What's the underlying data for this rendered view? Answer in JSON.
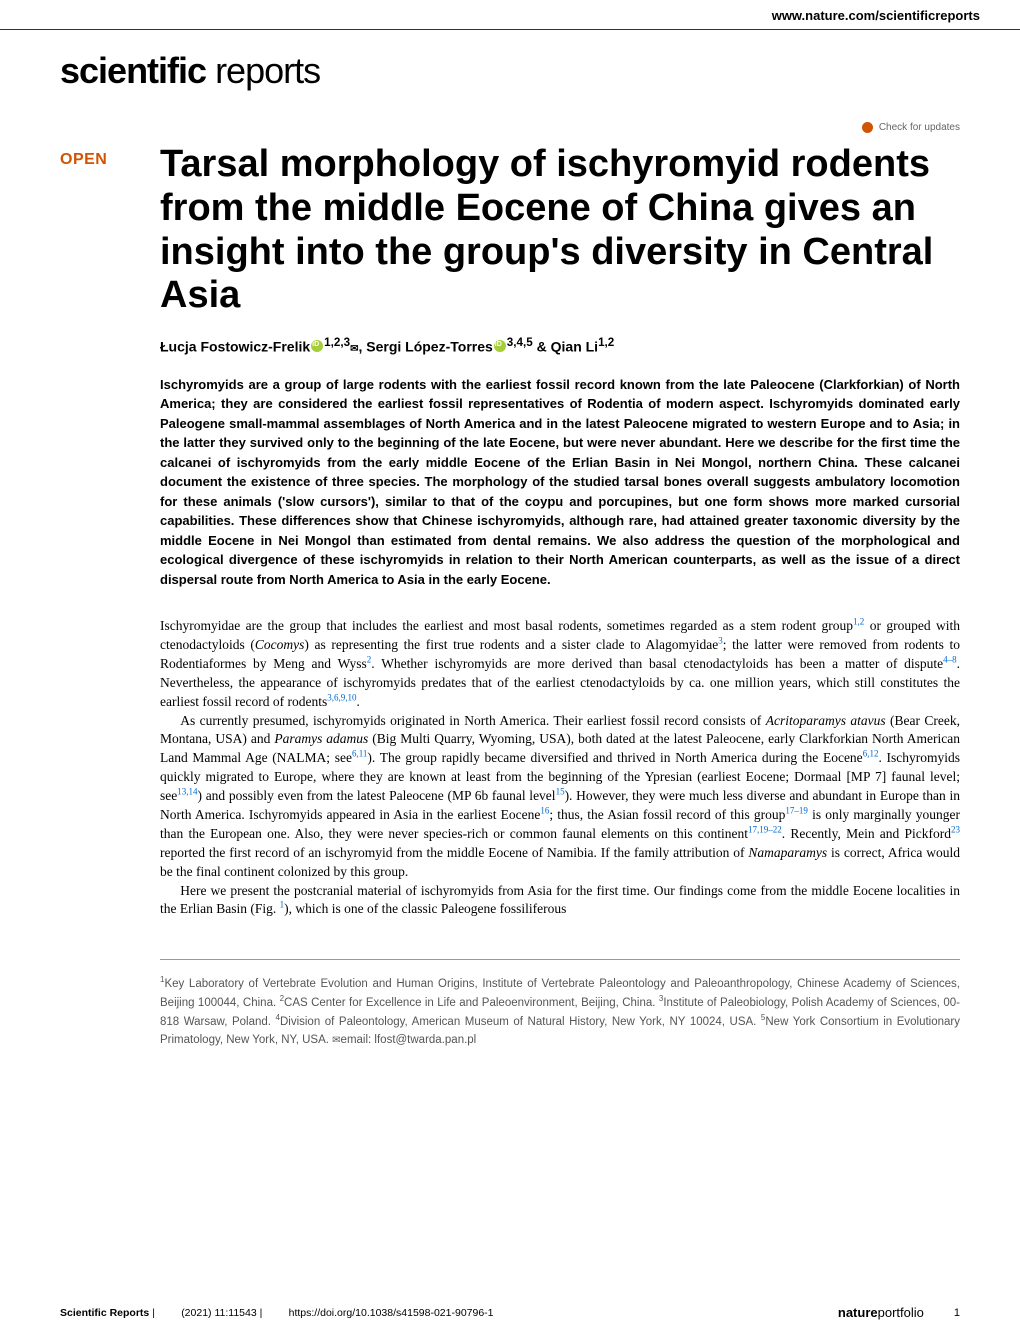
{
  "header": {
    "url": "www.nature.com/scientificreports"
  },
  "logo": {
    "part1": "scientific",
    "part2": " reports"
  },
  "check_updates": "Check for updates",
  "open_badge": "OPEN",
  "title": "Tarsal morphology of ischyromyid rodents from the middle Eocene of China gives an insight into the group's diversity in Central Asia",
  "authors": {
    "a1_name": "Łucja Fostowicz-Frelik",
    "a1_aff": "1,2,3",
    "a2_name": ", Sergi López-Torres",
    "a2_aff": "3,4,5",
    "a3_name": " & Qian Li",
    "a3_aff": "1,2"
  },
  "abstract": "Ischyromyids are a group of large rodents with the earliest fossil record known from the late Paleocene (Clarkforkian) of North America; they are considered the earliest fossil representatives of Rodentia of modern aspect. Ischyromyids dominated early Paleogene small-mammal assemblages of North America and in the latest Paleocene migrated to western Europe and to Asia; in the latter they survived only to the beginning of the late Eocene, but were never abundant. Here we describe for the first time the calcanei of ischyromyids from the early middle Eocene of the Erlian Basin in Nei Mongol, northern China. These calcanei document the existence of three species. The morphology of the studied tarsal bones overall suggests ambulatory locomotion for these animals ('slow cursors'), similar to that of the coypu and porcupines, but one form shows more marked cursorial capabilities. These differences show that Chinese ischyromyids, although rare, had attained greater taxonomic diversity by the middle Eocene in Nei Mongol than estimated from dental remains. We also address the question of the morphological and ecological divergence of these ischyromyids in relation to their North American counterparts, as well as the issue of a direct dispersal route from North America to Asia in the early Eocene.",
  "body": {
    "p1_a": "Ischyromyidae are the group that includes the earliest and most basal rodents, sometimes regarded as a stem rodent group",
    "p1_r1": "1,2",
    "p1_b": " or grouped with ctenodactyloids (",
    "p1_i1": "Cocomys",
    "p1_c": ") as representing the first true rodents and a sister clade to Alagomyidae",
    "p1_r2": "3",
    "p1_d": "; the latter were removed from rodents to Rodentiaformes by Meng and Wyss",
    "p1_r3": "2",
    "p1_e": ". Whether ischyromyids are more derived than basal ctenodactyloids has been a matter of dispute",
    "p1_r4": "4–8",
    "p1_f": ". Nevertheless, the appearance of ischyromyids predates that of the earliest ctenodactyloids by ca. one million years, which still constitutes the earliest fossil record of rodents",
    "p1_r5": "3,6,9,10",
    "p1_g": ".",
    "p2_a": "As currently presumed, ischyromyids originated in North America. Their earliest fossil record consists of ",
    "p2_i1": "Acritoparamys atavus",
    "p2_b": " (Bear Creek, Montana, USA) and ",
    "p2_i2": "Paramys adamus",
    "p2_c": " (Big Multi Quarry, Wyoming, USA), both dated at the latest Paleocene, early Clarkforkian North American Land Mammal Age (NALMA; see",
    "p2_r1": "6,11",
    "p2_d": "). The group rapidly became diversified and thrived in North America during the Eocene",
    "p2_r2": "6,12",
    "p2_e": ". Ischyromyids quickly migrated to Europe, where they are known at least from the beginning of the Ypresian (earliest Eocene; Dormaal [MP 7] faunal level; see",
    "p2_r3": "13,14",
    "p2_f": ") and possibly even from the latest Paleocene (MP 6b faunal level",
    "p2_r4": "15",
    "p2_g": "). However, they were much less diverse and abundant in Europe than in North America. Ischyromyids appeared in Asia in the earliest Eocene",
    "p2_r5": "16",
    "p2_h": "; thus, the Asian fossil record of this group",
    "p2_r6": "17–19",
    "p2_i": " is only marginally younger than the European one. Also, they were never species-rich or common faunal elements on this continent",
    "p2_r7": "17,19–22",
    "p2_j": ". Recently, Mein and Pickford",
    "p2_r8": "23",
    "p2_k": " reported the first record of an ischyromyid from the middle Eocene of Namibia. If the family attribution of ",
    "p2_i3": "Namaparamys",
    "p2_l": " is correct, Africa would be the final continent colonized by this group.",
    "p3_a": "Here we present the postcranial material of ischyromyids from Asia for the first time. Our findings come from the middle Eocene localities in the Erlian Basin (Fig. ",
    "p3_r1": "1",
    "p3_b": "), which is one of the classic Paleogene fossiliferous"
  },
  "affiliations": {
    "text": "Key Laboratory of Vertebrate Evolution and Human Origins, Institute of Vertebrate Paleontology and Paleoanthropology, Chinese Academy of Sciences, Beijing 100044, China. ",
    "a2": "CAS Center for Excellence in Life and Paleoenvironment, Beijing, China. ",
    "a3": "Institute of Paleobiology, Polish Academy of Sciences, 00-818 Warsaw, Poland. ",
    "a4": "Division of Paleontology, American Museum of Natural History, New York, NY 10024, USA. ",
    "a5": "New York Consortium in Evolutionary Primatology, New York, NY, USA. ",
    "email_label": "email: ",
    "email": "lfost@twarda.pan.pl"
  },
  "footer": {
    "journal": "Scientific Reports",
    "citation": "(2021) 11:11543",
    "doi": "https://doi.org/10.1038/s41598-021-90796-1",
    "np1": "nature",
    "np2": "portfolio",
    "page": "1",
    "sep": " |         "
  }
}
